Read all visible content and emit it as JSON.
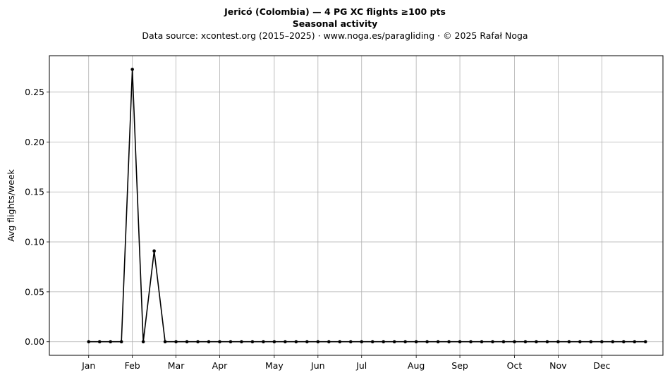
{
  "header": {
    "title": "Jericó (Colombia)  —  4 PG XC flights ≥100 pts",
    "subtitle": "Seasonal activity",
    "source": "Data source: xcontest.org (2015–2025)  ·  www.noga.es/paragliding  ·  © 2025 Rafał Noga"
  },
  "chart_data": {
    "type": "line",
    "title": "Jericó (Colombia)  —  4 PG XC flights ≥100 pts",
    "subtitle": "Seasonal activity",
    "xlabel": "",
    "ylabel": "Avg flights/week",
    "x_unit": "week of year",
    "xlim": [
      -2.6,
      53.6
    ],
    "ylim": [
      -0.0136,
      0.2864
    ],
    "grid": true,
    "x_ticks": [
      {
        "label": "Jan",
        "x": 1
      },
      {
        "label": "Feb",
        "x": 5
      },
      {
        "label": "Mar",
        "x": 9
      },
      {
        "label": "Apr",
        "x": 13
      },
      {
        "label": "May",
        "x": 18
      },
      {
        "label": "Jun",
        "x": 22
      },
      {
        "label": "Jul",
        "x": 26
      },
      {
        "label": "Aug",
        "x": 31
      },
      {
        "label": "Sep",
        "x": 35
      },
      {
        "label": "Oct",
        "x": 40
      },
      {
        "label": "Nov",
        "x": 44
      },
      {
        "label": "Dec",
        "x": 48
      }
    ],
    "y_ticks": [
      "0.00",
      "0.05",
      "0.10",
      "0.15",
      "0.20",
      "0.25"
    ],
    "series": [
      {
        "color": "#000000",
        "x": [
          1,
          2,
          3,
          4,
          5,
          6,
          7,
          8,
          9,
          10,
          11,
          12,
          13,
          14,
          15,
          16,
          17,
          18,
          19,
          20,
          21,
          22,
          23,
          24,
          25,
          26,
          27,
          28,
          29,
          30,
          31,
          32,
          33,
          34,
          35,
          36,
          37,
          38,
          39,
          40,
          41,
          42,
          43,
          44,
          45,
          46,
          47,
          48,
          49,
          50,
          51,
          52
        ],
        "values": [
          0,
          0,
          0,
          0,
          0.2727,
          0,
          0.0909,
          0,
          0,
          0,
          0,
          0,
          0,
          0,
          0,
          0,
          0,
          0,
          0,
          0,
          0,
          0,
          0,
          0,
          0,
          0,
          0,
          0,
          0,
          0,
          0,
          0,
          0,
          0,
          0,
          0,
          0,
          0,
          0,
          0,
          0,
          0,
          0,
          0,
          0,
          0,
          0,
          0,
          0,
          0,
          0,
          0
        ]
      }
    ]
  }
}
